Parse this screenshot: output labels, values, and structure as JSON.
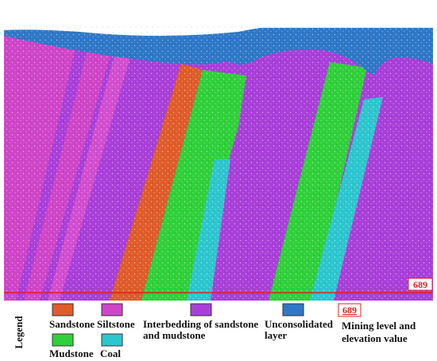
{
  "elevation_label": "689",
  "legend": {
    "title": "Legend",
    "items": [
      {
        "label_lines": [
          "Sandstone"
        ]
      },
      {
        "label_lines": [
          "Siltstone"
        ]
      },
      {
        "label_lines": [
          "Interbedding of sandstone",
          "and mudstone"
        ]
      },
      {
        "label_lines": [
          "Unconsolidated",
          "layer"
        ]
      },
      {
        "label_lines": [
          "Mining level and",
          "elevation value"
        ]
      },
      {
        "label_lines": [
          "Mudstone"
        ]
      },
      {
        "label_lines": [
          "Coal"
        ]
      }
    ]
  }
}
